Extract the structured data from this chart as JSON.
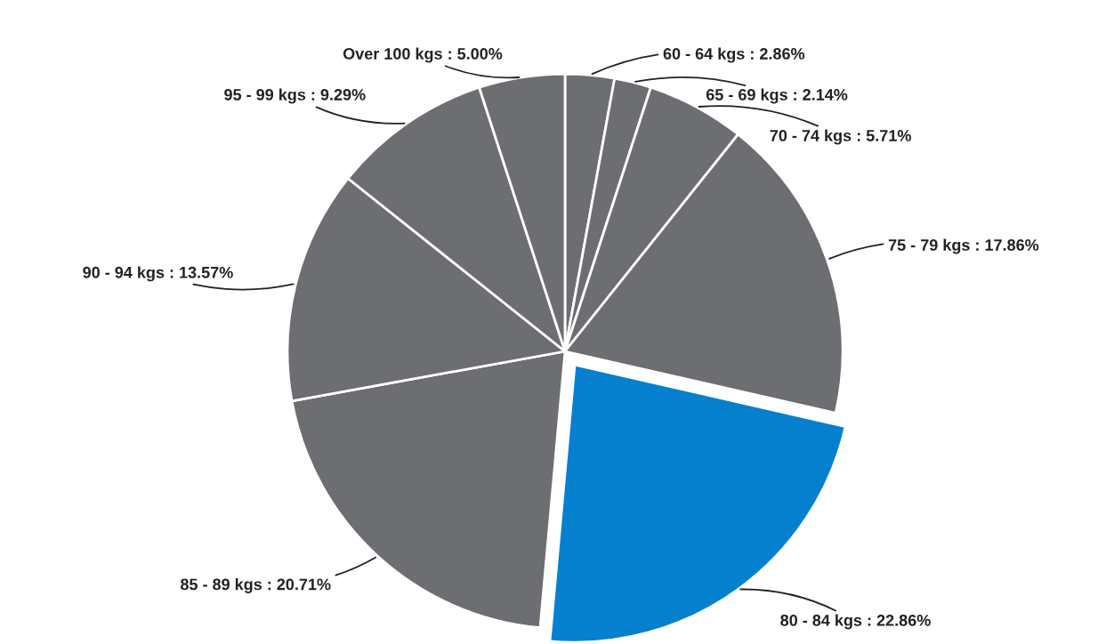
{
  "chart_data": {
    "type": "pie",
    "categories": [
      "60 - 64 kgs",
      "65 - 69 kgs",
      "70 - 74 kgs",
      "75 - 79 kgs",
      "80 - 84 kgs",
      "85 - 89 kgs",
      "90 - 94 kgs",
      "95 - 99 kgs",
      "Over 100 kgs"
    ],
    "values": [
      2.86,
      2.14,
      5.71,
      17.86,
      22.86,
      20.71,
      13.57,
      9.29,
      5.0
    ],
    "value_labels": [
      "2.86%",
      "2.14%",
      "5.71%",
      "17.86%",
      "22.86%",
      "20.71%",
      "13.57%",
      "9.29%",
      "5.00%"
    ],
    "colors": [
      "#6d6e71",
      "#6d6e71",
      "#6d6e71",
      "#6d6e71",
      "#0580cf",
      "#6d6e71",
      "#6d6e71",
      "#6d6e71",
      "#6d6e71"
    ],
    "legend": false
  }
}
